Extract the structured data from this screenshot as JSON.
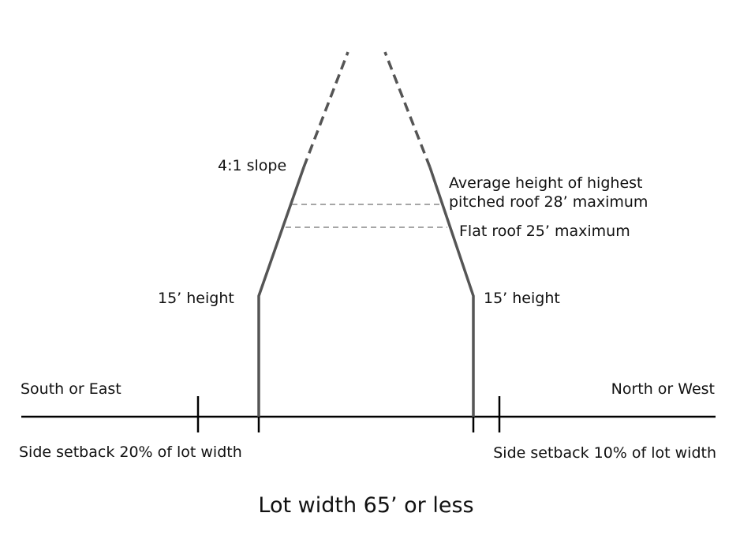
{
  "labels": {
    "slope": "4:1 slope",
    "pitched_roof": [
      "Average height of highest",
      "pitched roof 28’ maximum"
    ],
    "flat_roof": "Flat roof 25’ maximum",
    "left_height": "15’ height",
    "right_height": "15’ height",
    "left_side": "South or East",
    "right_side": "North or West",
    "left_setback": "Side setback 20% of lot width",
    "right_setback": "Side setback 10% of lot width",
    "caption": "Lot width 65’ or less"
  }
}
